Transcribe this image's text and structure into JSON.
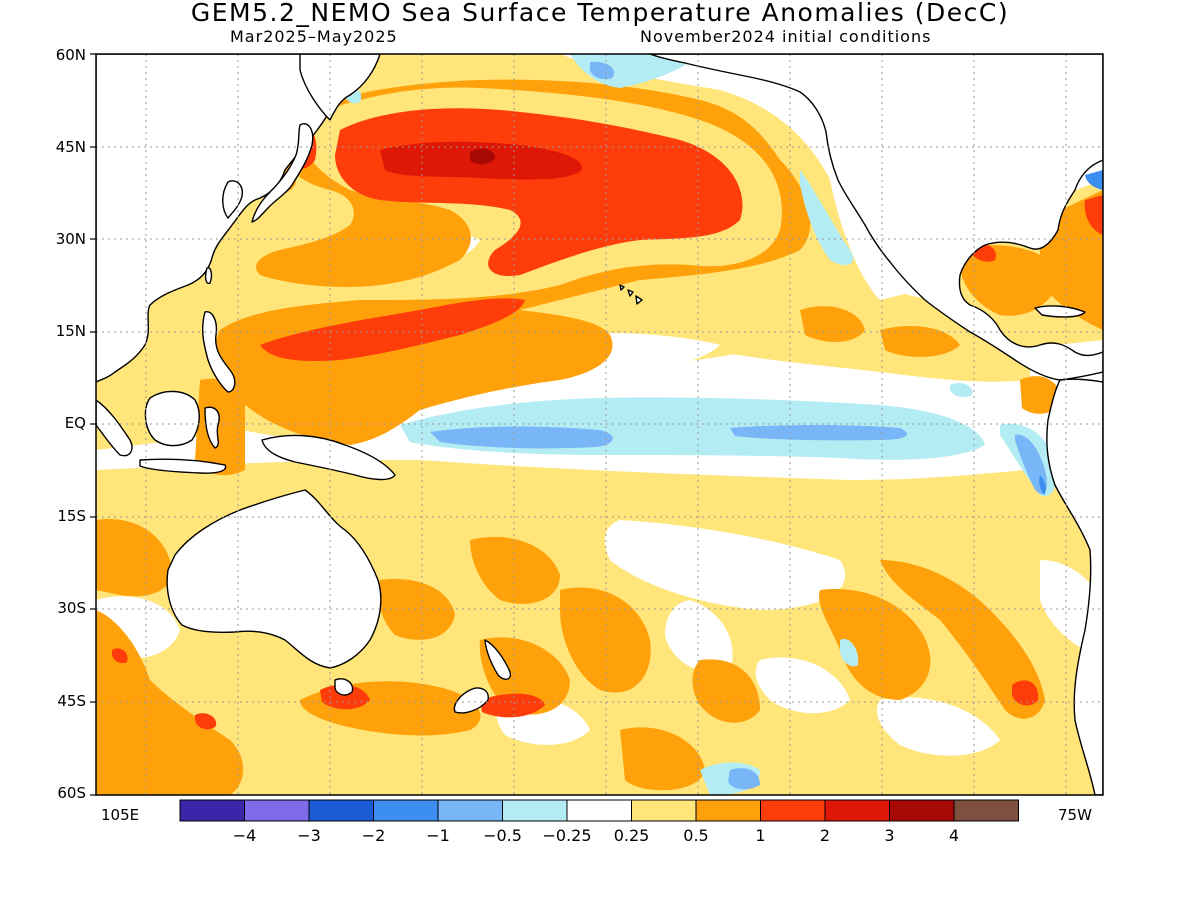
{
  "title": "GEM5.2_NEMO Sea Surface Temperature Anomalies (DecC)",
  "subtitle_left": "Mar2025–May2025",
  "subtitle_right": "November2024 initial conditions",
  "lat_labels": [
    "60N",
    "45N",
    "30N",
    "15N",
    "EQ",
    "15S",
    "30S",
    "45S",
    "60S"
  ],
  "lon_labels": {
    "west_edge": "105E",
    "east_edge": "75W"
  },
  "colorbar": {
    "labels": [
      "−4",
      "−3",
      "−2",
      "−1",
      "−0.5",
      "−0.25",
      "0.25",
      "0.5",
      "1",
      "2",
      "3",
      "4"
    ],
    "colors": [
      "#3a26a9",
      "#7f6bea",
      "#1b5cd6",
      "#3c8ef0",
      "#79b6f7",
      "#b4ecf3",
      "#ffffff",
      "#ffe57a",
      "#ffa10b",
      "#ff3d0a",
      "#df1706",
      "#a70a04",
      "#7d5040"
    ]
  },
  "colors": {
    "anomaly_0_25": "#ffe57a",
    "anomaly_0_5": "#ffa10b",
    "anomaly_1": "#ff3d0a",
    "anomaly_2": "#df1706",
    "anomaly_3": "#a70a04",
    "anomaly_neg_0_25": "#b4ecf3",
    "anomaly_neg_0_5": "#79b6f7",
    "anomaly_neg_1": "#3c8ef0",
    "anomaly_neg_2": "#1b5cd6",
    "land": "#ffffff",
    "coastline": "#000000",
    "grid": "#999999"
  }
}
